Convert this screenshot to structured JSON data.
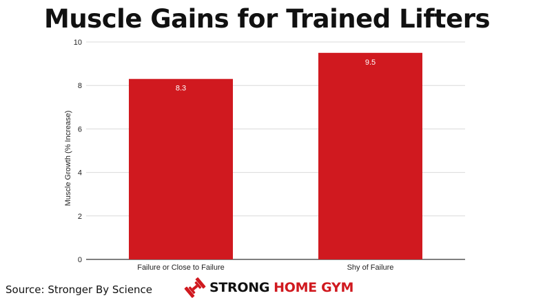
{
  "chart_data": {
    "type": "bar",
    "title": "Muscle Gains for Trained Lifters",
    "categories": [
      "Failure or Close to Failure",
      "Shy of Failure"
    ],
    "values": [
      8.3,
      9.5
    ],
    "data_labels": [
      "8.3",
      "9.5"
    ],
    "xlabel": "",
    "ylabel": "Muscle Growth (% Increase)",
    "ylim": [
      0,
      10
    ],
    "yticks": [
      "0",
      "2",
      "4",
      "6",
      "8",
      "10"
    ],
    "grid": true,
    "legend": "none",
    "bar_color": "#d0191f"
  },
  "footer": {
    "source": "Source: Stronger By Science",
    "brand_strong": "STRONG",
    "brand_home_gym": "HOME GYM",
    "brand_icon": "dumbbell-icon",
    "brand_color": "#d0191f"
  }
}
